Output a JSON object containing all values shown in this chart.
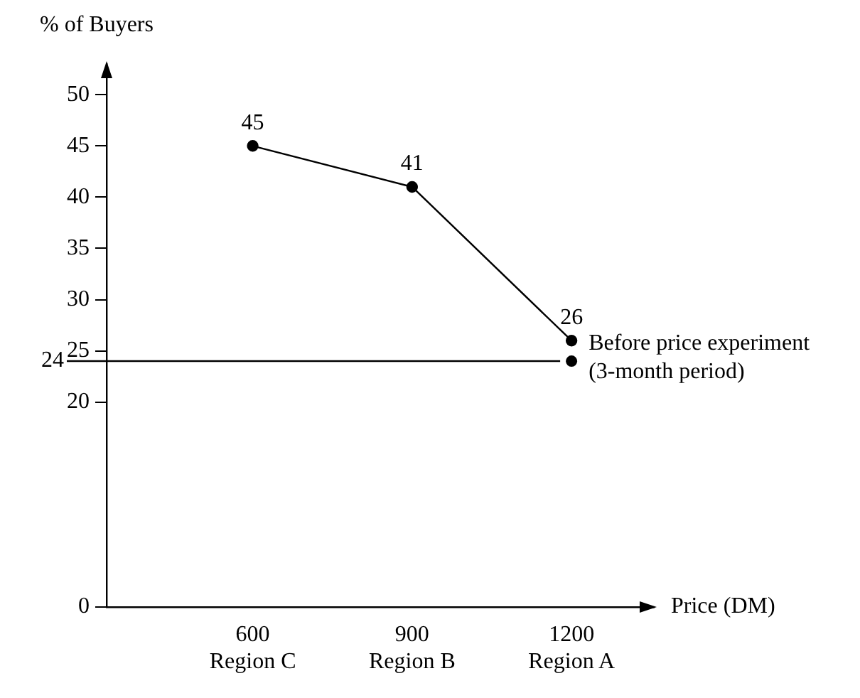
{
  "chart_data": {
    "type": "line",
    "xlabel": "Price (DM)",
    "ylabel": "% of Buyers",
    "x": [
      600,
      900,
      1200
    ],
    "series": [
      {
        "color": "#000000",
        "values": [
          45,
          41,
          26
        ],
        "value_labels": [
          "45",
          "41",
          "26"
        ]
      },
      {
        "type": "scatter",
        "color": "#000000",
        "x": [
          1200
        ],
        "values": [
          24
        ]
      }
    ],
    "xlim": [
      325,
      1355
    ],
    "xticks": [
      {
        "value": 600,
        "label": "600\nRegion C"
      },
      {
        "value": 900,
        "label": "900\nRegion B"
      },
      {
        "value": 1200,
        "label": "1200\nRegion A"
      }
    ],
    "ylim": [
      0,
      53
    ],
    "yticks": [
      0,
      20,
      25,
      30,
      35,
      40,
      45,
      50
    ],
    "ref_lines": [
      {
        "axis": "y",
        "value": 24,
        "label": "24",
        "color": "#000000"
      }
    ],
    "annotations": [
      {
        "text": "Before price experiment\n(3-month period)",
        "x": 1200,
        "y": 24
      }
    ],
    "marker": "circle",
    "line_style": "solid",
    "grid": false,
    "legend": false
  }
}
